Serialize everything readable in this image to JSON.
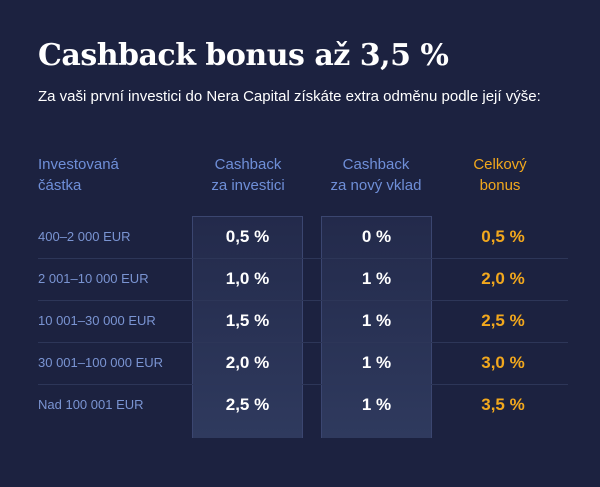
{
  "title": "Cashback bonus až 3,5 %",
  "subtitle": "Za vaši první investici do Nera Capital získáte extra odměnu podle její výše:",
  "headers": {
    "amount": [
      "Investovaná",
      "částka"
    ],
    "cashback_investment": [
      "Cashback",
      "za investici"
    ],
    "cashback_deposit": [
      "Cashback",
      "za nový vklad"
    ],
    "total_bonus": [
      "Celkový",
      "bonus"
    ]
  },
  "colors": {
    "background": "#1c2240",
    "accent_blue": "#6f8fd8",
    "accent_orange": "#f2a81d"
  },
  "rows": [
    {
      "amount": "400–2 000 EUR",
      "cashback_investment": "0,5 %",
      "cashback_deposit": "0 %",
      "total_bonus": "0,5 %"
    },
    {
      "amount": "2 001–10 000 EUR",
      "cashback_investment": "1,0 %",
      "cashback_deposit": "1 %",
      "total_bonus": "2,0 %"
    },
    {
      "amount": "10 001–30 000 EUR",
      "cashback_investment": "1,5 %",
      "cashback_deposit": "1 %",
      "total_bonus": "2,5 %"
    },
    {
      "amount": "30 001–100 000 EUR",
      "cashback_investment": "2,0 %",
      "cashback_deposit": "1 %",
      "total_bonus": "3,0 %"
    },
    {
      "amount": "Nad 100 001 EUR",
      "cashback_investment": "2,5 %",
      "cashback_deposit": "1 %",
      "total_bonus": "3,5 %"
    }
  ]
}
